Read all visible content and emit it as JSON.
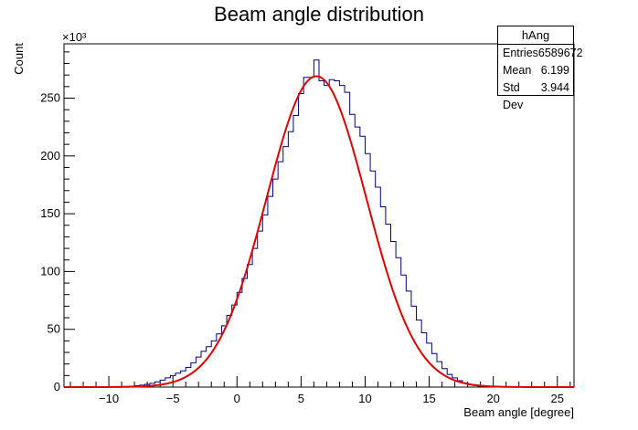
{
  "chart_data": {
    "type": "histogram",
    "title": "Beam angle distribution",
    "xlabel": "Beam angle [degree]",
    "ylabel": "Count",
    "y_exponent_label": "×10³",
    "xlim": [
      -13.5,
      26.3
    ],
    "ylim": [
      0,
      297000
    ],
    "x_ticks": [
      -10,
      -5,
      0,
      5,
      10,
      15,
      20,
      25
    ],
    "y_ticks": [
      0,
      50,
      100,
      150,
      200,
      250
    ],
    "bin_width": 0.4,
    "bins_x": [
      -9.2,
      -8.8,
      -8.4,
      -8.0,
      -7.6,
      -7.2,
      -6.8,
      -6.4,
      -6.0,
      -5.6,
      -5.2,
      -4.8,
      -4.4,
      -4.0,
      -3.6,
      -3.2,
      -2.8,
      -2.4,
      -2.0,
      -1.6,
      -1.2,
      -0.8,
      -0.4,
      0.0,
      0.4,
      0.8,
      1.2,
      1.6,
      2.0,
      2.4,
      2.8,
      3.2,
      3.6,
      4.0,
      4.4,
      4.8,
      5.2,
      5.6,
      6.0,
      6.4,
      6.8,
      7.2,
      7.6,
      8.0,
      8.4,
      8.8,
      9.2,
      9.6,
      10.0,
      10.4,
      10.8,
      11.2,
      11.6,
      12.0,
      12.4,
      12.8,
      13.2,
      13.6,
      14.0,
      14.4,
      14.8,
      15.2,
      15.6,
      16.0,
      16.4,
      16.8,
      17.2,
      17.6,
      18.0,
      18.4,
      18.8,
      19.2,
      19.6
    ],
    "bins_y": [
      300,
      500,
      800,
      1200,
      1700,
      2400,
      3300,
      4500,
      6000,
      8000,
      10000,
      12000,
      14000,
      17000,
      21000,
      26000,
      31000,
      35000,
      40000,
      46000,
      53000,
      62000,
      71000,
      82000,
      94000,
      106000,
      120000,
      135000,
      149000,
      165000,
      180000,
      195000,
      208000,
      221000,
      235000,
      254000,
      268000,
      268000,
      283000,
      265000,
      261000,
      266000,
      265000,
      261000,
      255000,
      236000,
      225000,
      217000,
      202000,
      187000,
      173000,
      156000,
      141000,
      126000,
      112000,
      97000,
      83000,
      70000,
      58000,
      47000,
      38000,
      29000,
      22000,
      16000,
      11000,
      8000,
      5500,
      3500,
      2200,
      1400,
      800,
      500,
      300
    ],
    "series": [
      {
        "name": "hAng",
        "kind": "histogram",
        "color": "#000080"
      },
      {
        "name": "",
        "kind": "gaussian-fit",
        "color": "#e00000",
        "amplitude": 269000,
        "mean": 6.2,
        "sigma": 3.9
      }
    ],
    "stats": {
      "name": "hAng",
      "rows": [
        {
          "label": "Entries",
          "value": "6589672"
        },
        {
          "label": "Mean",
          "value": "6.199"
        },
        {
          "label": "Std Dev",
          "value": "3.944"
        }
      ]
    },
    "grid": false
  }
}
